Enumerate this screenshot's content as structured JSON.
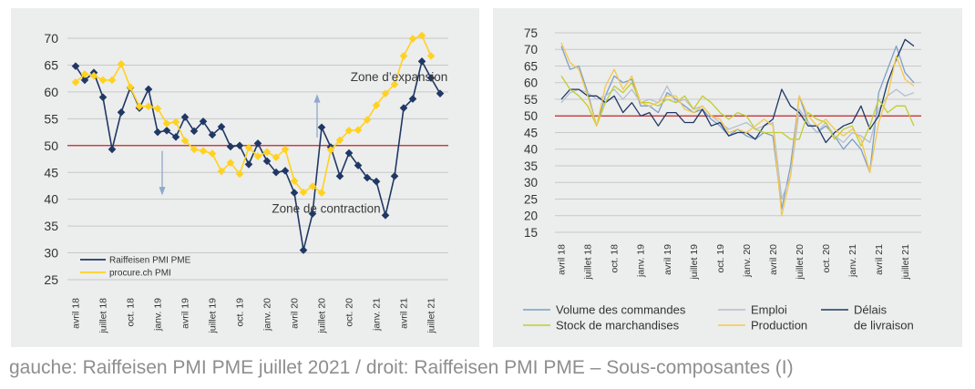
{
  "caption": "gauche: Raiffeisen PMI PME juillet 2021 / droit: Raiffeisen PMI PME – Sous-composantes (I)",
  "colors": {
    "navy": "#1f3864",
    "yellow": "#ffd21f",
    "refline": "#c0292b",
    "arrow": "#8fa9c8",
    "lightblue": "#7b9fca",
    "gray": "#b3bfd1",
    "lime": "#c1cd31",
    "gold": "#f5c84b",
    "grid": "#c8c8c8"
  },
  "chart_data": [
    {
      "type": "line",
      "ylim": [
        25,
        70
      ],
      "yticks": [
        25,
        30,
        35,
        40,
        45,
        50,
        55,
        60,
        65,
        70
      ],
      "reference_line": 50,
      "x_tick_labels": [
        {
          "i": 0,
          "label": "avril 18"
        },
        {
          "i": 3,
          "label": "juillet 18"
        },
        {
          "i": 6,
          "label": "oct. 18"
        },
        {
          "i": 9,
          "label": "janv. 19"
        },
        {
          "i": 12,
          "label": "avril 19"
        },
        {
          "i": 15,
          "label": "juillet 19"
        },
        {
          "i": 18,
          "label": "oct. 19"
        },
        {
          "i": 21,
          "label": "janv. 20"
        },
        {
          "i": 24,
          "label": "avril 20"
        },
        {
          "i": 27,
          "label": "juillet 20"
        },
        {
          "i": 30,
          "label": "oct. 20"
        },
        {
          "i": 33,
          "label": "janv. 21"
        },
        {
          "i": 36,
          "label": "avril 21"
        },
        {
          "i": 39,
          "label": "juillet 21"
        }
      ],
      "annotations": [
        {
          "text": "Zone d’expansion",
          "x": 35.5,
          "y": 62
        },
        {
          "text": "Zone de contraction",
          "x": 27.5,
          "y": 37.5
        }
      ],
      "legend_position": "bottom-left",
      "series": [
        {
          "name": "Raiffeisen PMI PME",
          "marker": "diamond",
          "values": [
            64.8,
            62.2,
            63.6,
            59.0,
            49.3,
            56.2,
            60.8,
            57.0,
            60.5,
            52.5,
            52.8,
            51.6,
            55.3,
            52.7,
            54.5,
            52.0,
            53.5,
            49.8,
            50.0,
            46.5,
            50.4,
            47.1,
            45.0,
            45.3,
            41.2,
            30.5,
            37.3,
            53.4,
            49.7,
            44.3,
            48.6,
            46.3,
            44.0,
            43.3,
            37.0,
            44.3,
            57.0,
            58.7,
            65.7,
            62.6,
            59.7
          ]
        },
        {
          "name": "procure.ch PMI",
          "marker": "diamond",
          "values": [
            61.8,
            63.3,
            63.0,
            62.2,
            62.2,
            65.2,
            60.9,
            57.3,
            57.3,
            56.9,
            54.1,
            54.4,
            50.9,
            49.3,
            49.0,
            48.5,
            45.2,
            46.8,
            44.7,
            49.6,
            48.0,
            48.8,
            47.8,
            49.3,
            43.4,
            41.3,
            42.4,
            41.2,
            49.2,
            51.0,
            52.8,
            52.9,
            54.8,
            57.5,
            59.7,
            61.4,
            66.7,
            69.9,
            70.5,
            66.7
          ]
        }
      ]
    },
    {
      "type": "line",
      "ylim": [
        15,
        75
      ],
      "yticks": [
        15,
        20,
        25,
        30,
        35,
        40,
        45,
        50,
        55,
        60,
        65,
        70,
        75
      ],
      "reference_line": 50,
      "x_tick_labels": [
        {
          "i": 0,
          "label": "avril 18"
        },
        {
          "i": 3,
          "label": "juillet 18"
        },
        {
          "i": 6,
          "label": "oct. 18"
        },
        {
          "i": 9,
          "label": "janv. 19"
        },
        {
          "i": 12,
          "label": "avril 19"
        },
        {
          "i": 15,
          "label": "juillet 19"
        },
        {
          "i": 18,
          "label": "oct. 19"
        },
        {
          "i": 21,
          "label": "janv. 20"
        },
        {
          "i": 24,
          "label": "avril 20"
        },
        {
          "i": 27,
          "label": "juillet 20"
        },
        {
          "i": 30,
          "label": "oct. 20"
        },
        {
          "i": 33,
          "label": "janv. 21"
        },
        {
          "i": 36,
          "label": "avril 21"
        },
        {
          "i": 39,
          "label": "juillet 21"
        }
      ],
      "legend_position": "bottom",
      "legend_labels": [
        "Volume des commandes",
        "Emploi",
        "Délais",
        "Stock de marchandises",
        "Production",
        "de livraison"
      ],
      "series": [
        {
          "name": "Volume des commandes",
          "values": [
            71,
            64,
            65,
            57,
            47,
            56,
            62,
            60,
            61,
            53,
            53,
            51,
            57,
            55,
            53,
            51,
            52,
            49,
            47,
            44,
            46,
            44,
            43,
            45,
            44,
            22,
            35,
            56,
            48,
            45,
            47,
            44,
            40,
            43,
            40,
            33,
            57,
            64,
            71,
            63,
            60
          ]
        },
        {
          "name": "Emploi",
          "values": [
            54,
            57,
            58,
            57,
            55,
            56,
            58,
            55,
            58,
            54,
            55,
            54,
            59,
            54,
            55,
            52,
            53,
            50,
            48,
            46,
            47,
            48,
            46,
            47,
            48,
            25,
            32,
            52,
            48,
            45,
            48,
            44,
            42,
            45,
            44,
            42,
            52,
            56,
            58,
            56,
            57
          ]
        },
        {
          "name": "Délais de livraison",
          "values": [
            55,
            58,
            58,
            56,
            56,
            54,
            56,
            51,
            54,
            50,
            51,
            47,
            51,
            51,
            48,
            48,
            52,
            47,
            48,
            44,
            45,
            45,
            43,
            47,
            49,
            58,
            53,
            51,
            47,
            47,
            42,
            45,
            47,
            48,
            53,
            46,
            50,
            60,
            67,
            73,
            71
          ]
        },
        {
          "name": "Stock de marchandises",
          "values": [
            62,
            58,
            56,
            53,
            47,
            54,
            59,
            57,
            60,
            54,
            54,
            53,
            55,
            54,
            56,
            52,
            56,
            54,
            51,
            49,
            51,
            50,
            46,
            45,
            45,
            45,
            43,
            43,
            51,
            49,
            48,
            43,
            46,
            47,
            41,
            47,
            55,
            51,
            53,
            53,
            47
          ]
        },
        {
          "name": "Production",
          "values": [
            72,
            66,
            64,
            56,
            47,
            59,
            64,
            58,
            62,
            54,
            53,
            54,
            56,
            56,
            52,
            51,
            53,
            50,
            49,
            45,
            46,
            45,
            47,
            49,
            47,
            20,
            32,
            56,
            50,
            47,
            49,
            46,
            44,
            46,
            43,
            33,
            48,
            56,
            68,
            61,
            59
          ]
        }
      ]
    }
  ]
}
